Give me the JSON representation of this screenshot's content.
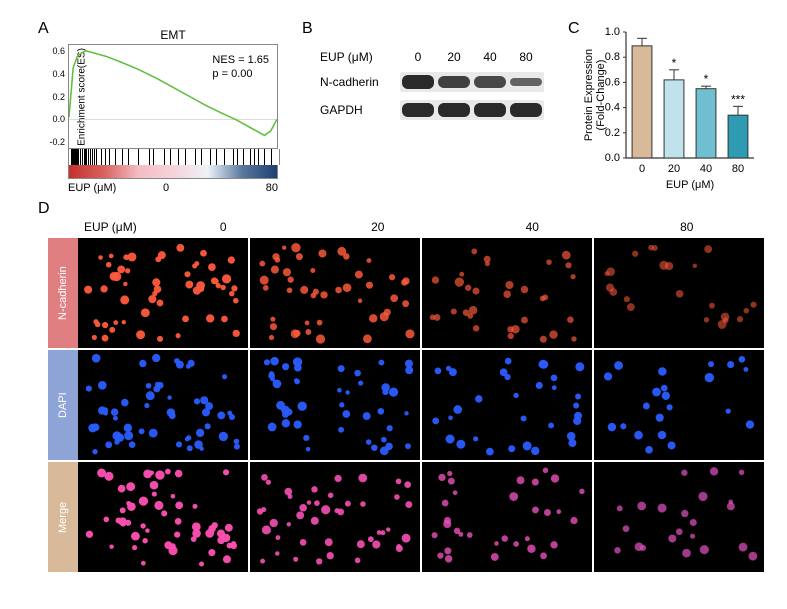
{
  "labels": {
    "A": "A",
    "B": "B",
    "C": "C",
    "D": "D",
    "eup_unit": "EUP (μM)"
  },
  "panelA": {
    "title": "EMT",
    "ylabel": "Enrichment score(ES)",
    "nes_line": "NES = 1.65",
    "p_line": "p = 0.00",
    "yticks": [
      -0.2,
      0.0,
      0.2,
      0.4,
      0.6
    ],
    "ylim": [
      -0.25,
      0.65
    ],
    "x_left": "0",
    "x_right": "80",
    "curve_color": "#5fbf3f",
    "curve": [
      [
        0.0,
        0.02
      ],
      [
        0.02,
        0.45
      ],
      [
        0.04,
        0.55
      ],
      [
        0.06,
        0.58
      ],
      [
        0.08,
        0.6
      ],
      [
        0.12,
        0.58
      ],
      [
        0.18,
        0.55
      ],
      [
        0.25,
        0.5
      ],
      [
        0.33,
        0.44
      ],
      [
        0.42,
        0.36
      ],
      [
        0.5,
        0.28
      ],
      [
        0.58,
        0.2
      ],
      [
        0.66,
        0.12
      ],
      [
        0.74,
        0.05
      ],
      [
        0.8,
        0.0
      ],
      [
        0.85,
        -0.05
      ],
      [
        0.9,
        -0.1
      ],
      [
        0.94,
        -0.14
      ],
      [
        0.97,
        -0.1
      ],
      [
        1.0,
        0.0
      ]
    ],
    "rug": [
      0.01,
      0.015,
      0.02,
      0.025,
      0.03,
      0.035,
      0.04,
      0.045,
      0.05,
      0.06,
      0.07,
      0.075,
      0.08,
      0.09,
      0.1,
      0.11,
      0.12,
      0.13,
      0.15,
      0.17,
      0.19,
      0.22,
      0.25,
      0.28,
      0.33,
      0.38,
      0.4,
      0.45,
      0.48,
      0.52,
      0.55,
      0.6,
      0.63,
      0.67,
      0.7,
      0.74,
      0.78,
      0.8,
      0.83,
      0.86,
      0.88,
      0.9,
      0.93,
      0.96
    ],
    "gradient": [
      "#c5302c",
      "#d6625e",
      "#f3bcc4",
      "#f6d3da",
      "#eef2f8",
      "#58789e",
      "#1f3f73"
    ]
  },
  "panelB": {
    "conc": [
      "0",
      "20",
      "40",
      "80"
    ],
    "rows": [
      {
        "name": "N-cadherin",
        "intensity": [
          1.0,
          0.75,
          0.65,
          0.35
        ]
      },
      {
        "name": "GAPDH",
        "intensity": [
          1.0,
          1.0,
          1.0,
          1.0
        ]
      }
    ],
    "band_color": "#2a2a2a",
    "lane_bg": "#e9e9e9"
  },
  "panelC": {
    "type": "bar",
    "ylabel_line1": "Protein Expression",
    "ylabel_line2": "(Fold-Change)",
    "xlabel": "EUP (μM)",
    "categories": [
      "0",
      "20",
      "40",
      "80"
    ],
    "values": [
      0.89,
      0.62,
      0.55,
      0.34
    ],
    "errors": [
      0.06,
      0.08,
      0.02,
      0.07
    ],
    "sig": [
      "",
      "*",
      "*",
      "***"
    ],
    "colors": [
      "#d8b99a",
      "#bfe2ed",
      "#6fbfd1",
      "#2f9bb3"
    ],
    "ylim": [
      0.0,
      1.0
    ],
    "ytick_step": 0.2,
    "bar_border": "#333333",
    "axis_color": "#333333",
    "label_fontsize": 11
  },
  "panelD": {
    "conc": [
      "0",
      "20",
      "40",
      "80"
    ],
    "rows": [
      {
        "name": "N-cadherin",
        "color": "#e07f82",
        "dot": "#ff5a3c",
        "count": [
          55,
          45,
          32,
          22
        ],
        "bright": [
          1.0,
          0.8,
          0.55,
          0.35
        ]
      },
      {
        "name": "DAPI",
        "color": "#8fa4d6",
        "dot": "#2a5cff",
        "count": [
          55,
          45,
          32,
          22
        ],
        "bright": [
          1.0,
          1.0,
          1.0,
          1.0
        ]
      },
      {
        "name": "Merge",
        "color": "#d8b99a",
        "dot": "#ff4fb0",
        "count": [
          55,
          45,
          32,
          22
        ],
        "bright": [
          1.0,
          0.85,
          0.6,
          0.4
        ]
      }
    ],
    "cell_bg": "#000000"
  }
}
